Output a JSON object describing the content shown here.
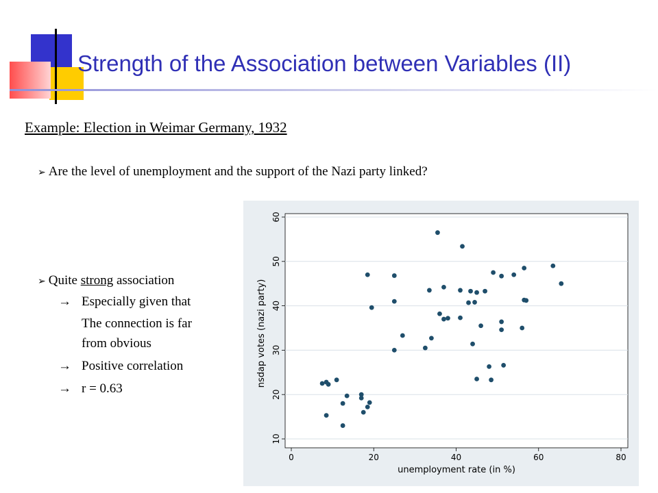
{
  "title": "Strength of the Association between Variables (II)",
  "example_heading": "Example: Election in Weimar Germany, 1932",
  "question": "Are the level of unemployment and the support of the Nazi party linked?",
  "findings": {
    "pre": "Quite ",
    "emph": "strong",
    "post": " association",
    "arrow": "→",
    "sub1": "Especially given that",
    "sub1_cont1": "The connection is far",
    "sub1_cont2": "from obvious",
    "sub2": "Positive correlation",
    "sub3": "r = 0.63"
  },
  "colors": {
    "title": "#2f2fb5",
    "marker": "#1f4e6b",
    "panel": "#e9eef2"
  },
  "chart_data": {
    "type": "scatter",
    "xlabel": "unemployment rate (in %)",
    "ylabel": "nsdap votes (nazi party)",
    "xlim": [
      0,
      80
    ],
    "ylim": [
      10,
      60
    ],
    "xticks": [
      0,
      20,
      40,
      60,
      80
    ],
    "yticks": [
      10,
      20,
      30,
      40,
      50,
      60
    ],
    "grid": "horizontal",
    "points": [
      [
        7.5,
        22.5
      ],
      [
        8.5,
        22.8
      ],
      [
        9,
        22.3
      ],
      [
        11,
        23.3
      ],
      [
        8.5,
        15.3
      ],
      [
        12.5,
        18
      ],
      [
        12.5,
        13
      ],
      [
        13.5,
        19.7
      ],
      [
        17,
        20
      ],
      [
        17,
        19.2
      ],
      [
        17.5,
        16
      ],
      [
        18.5,
        17.2
      ],
      [
        19,
        18.2
      ],
      [
        18.5,
        47
      ],
      [
        19.5,
        39.6
      ],
      [
        25,
        46.8
      ],
      [
        25,
        41
      ],
      [
        25,
        30
      ],
      [
        27,
        33.3
      ],
      [
        32.5,
        30.5
      ],
      [
        33.5,
        43.5
      ],
      [
        34,
        32.7
      ],
      [
        35.5,
        56.5
      ],
      [
        36,
        38.2
      ],
      [
        37,
        37
      ],
      [
        37,
        44.2
      ],
      [
        38,
        37.2
      ],
      [
        41,
        37.3
      ],
      [
        41,
        43.5
      ],
      [
        41.5,
        53.4
      ],
      [
        43,
        40.7
      ],
      [
        43.5,
        43.3
      ],
      [
        44,
        31.4
      ],
      [
        44.5,
        40.8
      ],
      [
        45,
        43
      ],
      [
        45,
        23.5
      ],
      [
        46,
        35.5
      ],
      [
        47,
        43.3
      ],
      [
        48,
        26.3
      ],
      [
        48.5,
        23.3
      ],
      [
        49,
        47.5
      ],
      [
        51,
        46.7
      ],
      [
        51,
        36.4
      ],
      [
        51,
        34.6
      ],
      [
        51.5,
        26.6
      ],
      [
        54,
        47
      ],
      [
        56,
        35
      ],
      [
        56.5,
        48.5
      ],
      [
        56.5,
        41.3
      ],
      [
        57,
        41.2
      ],
      [
        63.5,
        49
      ],
      [
        65.5,
        45
      ]
    ]
  }
}
